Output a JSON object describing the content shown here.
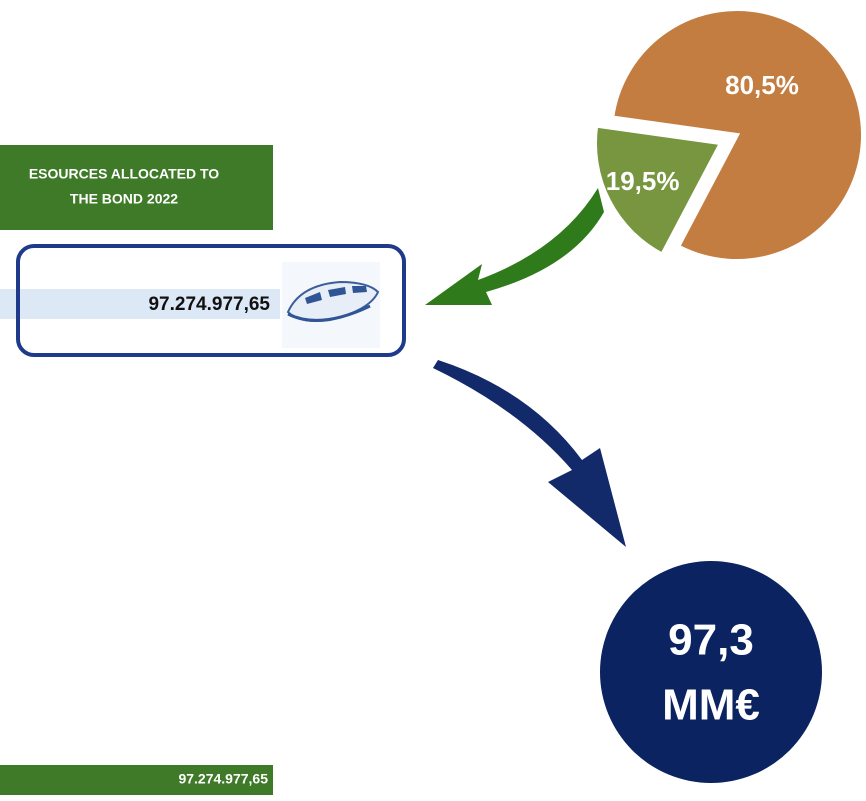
{
  "banner": {
    "lines": [
      "ESOURCES ALLOCATED TO",
      "THE BOND 2022"
    ]
  },
  "amount_box": {
    "value": "97.274.977,65"
  },
  "total_bar": {
    "value": "97.274.977,65"
  },
  "circle": {
    "lines": [
      "97,3",
      "MM€"
    ]
  },
  "chart_data": {
    "type": "pie",
    "categories": [
      null,
      null
    ],
    "values": [
      80.5,
      19.5
    ],
    "value_labels": [
      "80,5%",
      "19,5%"
    ],
    "colors": [
      "#c47d40",
      "#77963f"
    ]
  }
}
